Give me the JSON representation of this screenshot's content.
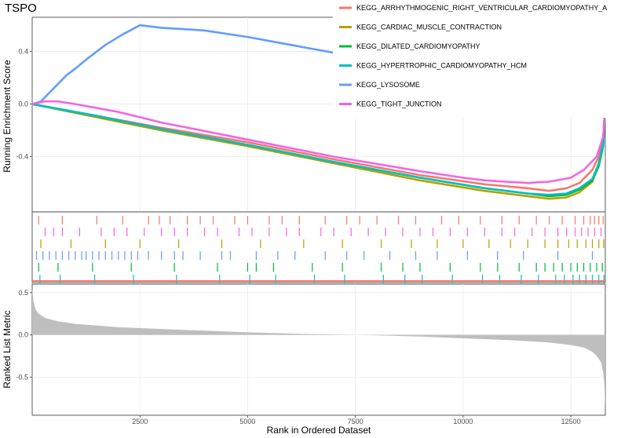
{
  "chart_data": {
    "type": "line",
    "title": "TSPO",
    "xlabel": "Rank in Ordered Dataset",
    "top_panel": {
      "ylabel": "Running Enrichment Score",
      "ylim": [
        -0.82,
        0.66
      ],
      "yticks": [
        0.4,
        0.0,
        -0.4
      ],
      "ytick_labels": [
        "0.4",
        "0.0",
        "-0.4"
      ]
    },
    "bottom_panel": {
      "ylabel": "Ranked List Metric",
      "ylim": [
        -0.95,
        0.6
      ],
      "yticks": [
        0.5,
        0.0,
        -0.5
      ],
      "ytick_labels": [
        "0.5",
        "0.0",
        "-0.5"
      ],
      "fill_color": "#bebebe"
    },
    "xlim": [
      0,
      13300
    ],
    "xticks": [
      2500,
      5000,
      7500,
      10000,
      12500
    ],
    "xtick_labels": [
      "2500",
      "5000",
      "7500",
      "10000",
      "12500"
    ],
    "legend_position": "top-right",
    "grid": true,
    "series": [
      {
        "name": "KEGG_ARRHYTHMOGENIC_RIGHT_VENTRICULAR_CARDIOMYOPATHY_A",
        "color": "#F8766D",
        "x": [
          0,
          1500,
          3000,
          5000,
          7000,
          9000,
          10500,
          11500,
          12000,
          12400,
          12700,
          13000,
          13150,
          13250,
          13300
        ],
        "y": [
          0.0,
          -0.09,
          -0.18,
          -0.29,
          -0.42,
          -0.54,
          -0.61,
          -0.64,
          -0.66,
          -0.64,
          -0.6,
          -0.5,
          -0.4,
          -0.25,
          0.0
        ]
      },
      {
        "name": "KEGG_CARDIAC_MUSCLE_CONTRACTION",
        "color": "#B79F00",
        "x": [
          0,
          1500,
          3000,
          5000,
          7000,
          9000,
          10500,
          11500,
          12000,
          12400,
          12700,
          13000,
          13150,
          13250,
          13300
        ],
        "y": [
          0.0,
          -0.1,
          -0.2,
          -0.32,
          -0.45,
          -0.58,
          -0.66,
          -0.7,
          -0.72,
          -0.71,
          -0.67,
          -0.59,
          -0.45,
          -0.3,
          0.0
        ]
      },
      {
        "name": "KEGG_DILATED_CARDIOMYOPATHY",
        "color": "#00BA38",
        "x": [
          0,
          1500,
          3000,
          5000,
          7000,
          9000,
          10500,
          11500,
          12000,
          12400,
          12700,
          13000,
          13150,
          13250,
          13300
        ],
        "y": [
          0.0,
          -0.09,
          -0.19,
          -0.31,
          -0.44,
          -0.56,
          -0.64,
          -0.68,
          -0.7,
          -0.69,
          -0.65,
          -0.58,
          -0.47,
          -0.32,
          0.0
        ]
      },
      {
        "name": "KEGG_HYPERTROPHIC_CARDIOMYOPATHY_HCM",
        "color": "#00BFC4",
        "x": [
          0,
          1500,
          3000,
          5000,
          7000,
          9000,
          10500,
          11500,
          12000,
          12400,
          12700,
          13000,
          13150,
          13250,
          13300
        ],
        "y": [
          0.0,
          -0.09,
          -0.19,
          -0.31,
          -0.44,
          -0.56,
          -0.64,
          -0.68,
          -0.69,
          -0.68,
          -0.64,
          -0.57,
          -0.45,
          -0.3,
          0.0
        ]
      },
      {
        "name": "KEGG_LYSOSOME",
        "color": "#619CFF",
        "x": [
          0,
          200,
          500,
          800,
          1000,
          1300,
          1700,
          2100,
          2500,
          3000,
          3500,
          4000,
          5000,
          6000,
          7000,
          8000,
          9000,
          10000,
          11000,
          12000,
          13000,
          13300
        ],
        "y": [
          0.0,
          0.02,
          0.12,
          0.22,
          0.27,
          0.35,
          0.45,
          0.53,
          0.6,
          0.58,
          0.57,
          0.56,
          0.51,
          0.45,
          0.39,
          0.32,
          0.26,
          0.18,
          0.11,
          0.05,
          0.02,
          0.0
        ]
      },
      {
        "name": "KEGG_TIGHT_JUNCTION",
        "color": "#F564E3",
        "x": [
          0,
          300,
          600,
          1000,
          2000,
          3000,
          5000,
          7000,
          9000,
          10000,
          10500,
          11000,
          11500,
          12000,
          12500,
          12800,
          13100,
          13250,
          13300
        ],
        "y": [
          0.0,
          0.02,
          0.02,
          0.0,
          -0.06,
          -0.14,
          -0.27,
          -0.4,
          -0.51,
          -0.56,
          -0.58,
          -0.59,
          -0.6,
          -0.59,
          -0.56,
          -0.5,
          -0.4,
          -0.25,
          0.0
        ]
      }
    ],
    "hits": [
      {
        "series": "KEGG_ARRHYTHMOGENIC_RIGHT_VENTRICULAR_CARDIOMYOPATHY_A",
        "positions": [
          150,
          700,
          1500,
          2100,
          2700,
          2950,
          3200,
          3600,
          3900,
          4200,
          4700,
          5000,
          5500,
          5800,
          6200,
          6800,
          7300,
          7600,
          8000,
          8500,
          8900,
          9500,
          9900,
          10400,
          10900,
          11300,
          11700,
          12000,
          12300,
          12600,
          12800,
          12950,
          13050,
          13150,
          13250
        ]
      },
      {
        "series": "KEGG_TIGHT_JUNCTION",
        "positions": [
          300,
          500,
          700,
          1100,
          1600,
          1900,
          2200,
          2600,
          3000,
          3300,
          3600,
          4000,
          4300,
          4800,
          5100,
          5500,
          5900,
          6200,
          6700,
          7000,
          7400,
          7800,
          8200,
          8600,
          9000,
          9300,
          9700,
          10100,
          10500,
          10900,
          11200,
          11600,
          11900,
          12200,
          12400,
          12600,
          12750,
          12900,
          13050,
          13200
        ]
      },
      {
        "series": "KEGG_CARDIAC_MUSCLE_CONTRACTION",
        "positions": [
          200,
          900,
          1700,
          2500,
          3400,
          4400,
          5300,
          6300,
          7200,
          8100,
          8800,
          9400,
          10000,
          10600,
          11100,
          11500,
          11900,
          12200,
          12450,
          12650,
          12850,
          13000,
          13150,
          13260
        ]
      },
      {
        "series": "KEGG_LYSOSOME",
        "positions": [
          100,
          250,
          400,
          550,
          700,
          850,
          1000,
          1150,
          1250,
          1400,
          1550,
          1700,
          1850,
          2000,
          2150,
          2300,
          2450,
          2700,
          3000,
          3300,
          3500,
          3900,
          4400,
          4600,
          5200,
          5700,
          6100,
          6800,
          7300,
          7700,
          8300,
          8900,
          9400,
          10100,
          10800,
          11400,
          12200,
          13000
        ]
      },
      {
        "series": "KEGG_DILATED_CARDIOMYOPATHY",
        "positions": [
          150,
          600,
          1400,
          2300,
          3300,
          4300,
          5000,
          5200,
          5600,
          6500,
          7200,
          8100,
          8600,
          9000,
          9700,
          10400,
          10800,
          11300,
          11700,
          11900,
          12100,
          12300,
          12500,
          12650,
          12800,
          12950,
          13100,
          13230
        ]
      },
      {
        "series": "KEGG_HYPERTROPHIC_CARDIOMYOPATHY_HCM",
        "positions": [
          180,
          650,
          1450,
          2350,
          3350,
          4350,
          5050,
          5650,
          6550,
          7250,
          8150,
          8650,
          9050,
          9750,
          10450,
          10850,
          11350,
          11750,
          12150,
          12350,
          12550,
          12700,
          12850,
          13000,
          13150,
          13270
        ]
      }
    ],
    "ranked_metric": {
      "x": [
        0,
        30,
        80,
        150,
        300,
        600,
        1000,
        2000,
        3000,
        4000,
        5000,
        6000,
        7000,
        7500,
        8000,
        9000,
        10000,
        11000,
        12000,
        12500,
        12800,
        13000,
        13100,
        13200,
        13250,
        13280,
        13300
      ],
      "y": [
        0.55,
        0.4,
        0.3,
        0.25,
        0.2,
        0.16,
        0.13,
        0.09,
        0.07,
        0.05,
        0.03,
        0.015,
        0.005,
        0.0,
        -0.005,
        -0.02,
        -0.04,
        -0.06,
        -0.09,
        -0.12,
        -0.15,
        -0.2,
        -0.25,
        -0.32,
        -0.45,
        -0.6,
        -0.9
      ]
    },
    "baseline_color": "#F8766D"
  }
}
